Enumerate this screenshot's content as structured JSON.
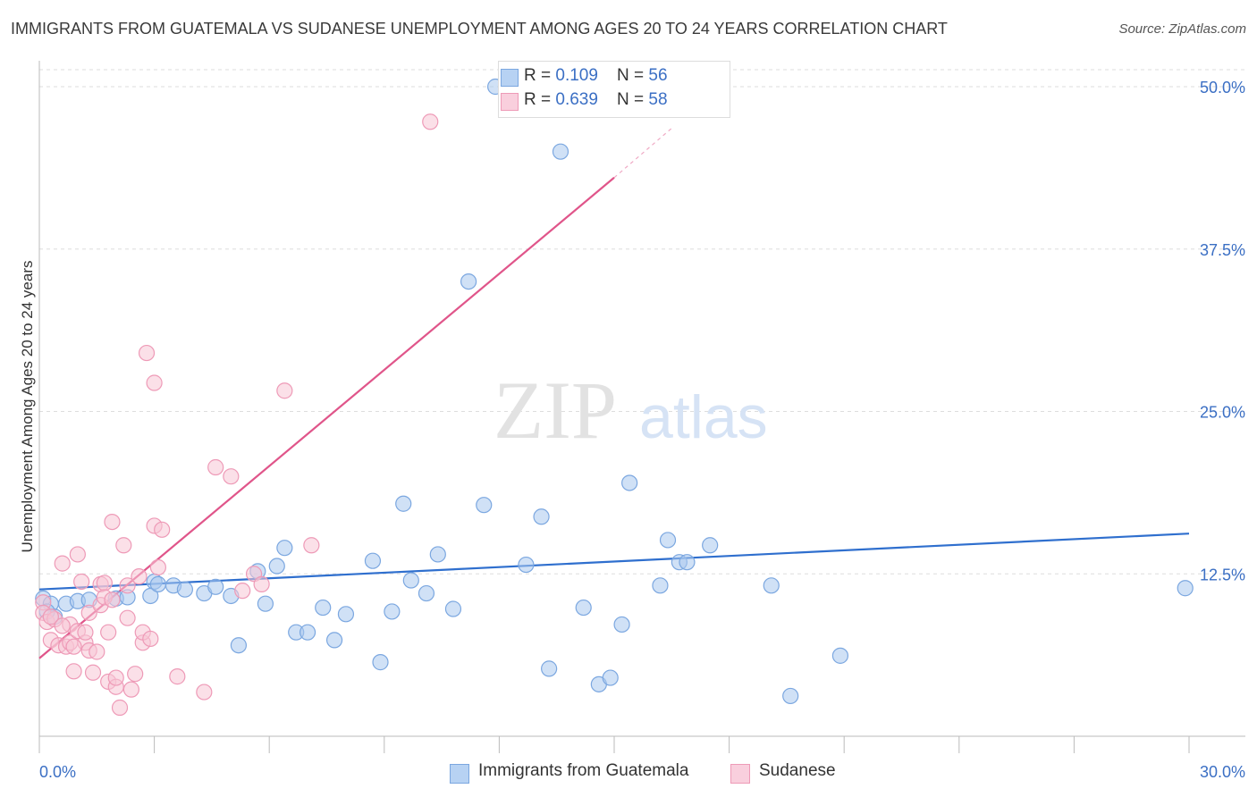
{
  "title": "IMMIGRANTS FROM GUATEMALA VS SUDANESE UNEMPLOYMENT AMONG AGES 20 TO 24 YEARS CORRELATION CHART",
  "source": "Source: ZipAtlas.com",
  "watermark": {
    "zip": "ZIP",
    "atlas": "atlas"
  },
  "legend": {
    "series1": {
      "r_label": "R = ",
      "r_value": "0.109",
      "n_label": "N = ",
      "n_value": "56"
    },
    "series2": {
      "r_label": "R = ",
      "r_value": "0.639",
      "n_label": "N = ",
      "n_value": "58"
    }
  },
  "chart_data": {
    "type": "scatter",
    "xlabel": "",
    "ylabel": "Unemployment Among Ages 20 to 24 years",
    "xlim": [
      0,
      30
    ],
    "ylim": [
      0,
      50
    ],
    "x_tick_labels": [
      "0.0%",
      "30.0%"
    ],
    "y_tick_values": [
      12.5,
      25.0,
      37.5,
      50.0
    ],
    "y_tick_labels": [
      "12.5%",
      "25.0%",
      "37.5%",
      "50.0%"
    ],
    "grid": true,
    "legend_position": "top-center",
    "series": [
      {
        "name": "Immigrants from Guatemala",
        "color": "#a9c8ef",
        "stroke": "#7ba7e0",
        "trend_color": "#2f6fce",
        "trend": [
          [
            0,
            11.3
          ],
          [
            30,
            15.6
          ]
        ],
        "points": [
          [
            0.1,
            10.6
          ],
          [
            0.3,
            10.2
          ],
          [
            0.4,
            9.2
          ],
          [
            0.7,
            10.2
          ],
          [
            1.0,
            10.4
          ],
          [
            1.3,
            10.5
          ],
          [
            2.0,
            10.6
          ],
          [
            2.3,
            10.7
          ],
          [
            2.9,
            10.8
          ],
          [
            3.0,
            11.9
          ],
          [
            3.1,
            11.7
          ],
          [
            3.5,
            11.6
          ],
          [
            3.8,
            11.3
          ],
          [
            4.3,
            11.0
          ],
          [
            4.6,
            11.5
          ],
          [
            5.0,
            10.8
          ],
          [
            5.2,
            7.0
          ],
          [
            5.7,
            12.7
          ],
          [
            5.9,
            10.2
          ],
          [
            6.2,
            13.1
          ],
          [
            6.4,
            14.5
          ],
          [
            6.7,
            8.0
          ],
          [
            7.0,
            8.0
          ],
          [
            7.4,
            9.9
          ],
          [
            7.7,
            7.4
          ],
          [
            8.0,
            9.4
          ],
          [
            8.7,
            13.5
          ],
          [
            8.9,
            5.7
          ],
          [
            9.2,
            9.6
          ],
          [
            9.5,
            17.9
          ],
          [
            9.7,
            12.0
          ],
          [
            10.1,
            11.0
          ],
          [
            10.4,
            14.0
          ],
          [
            10.8,
            9.8
          ],
          [
            11.2,
            35.0
          ],
          [
            11.6,
            17.8
          ],
          [
            12.7,
            13.2
          ],
          [
            13.1,
            16.9
          ],
          [
            13.3,
            5.2
          ],
          [
            13.6,
            45.0
          ],
          [
            14.2,
            9.9
          ],
          [
            14.6,
            4.0
          ],
          [
            14.9,
            4.5
          ],
          [
            15.2,
            8.6
          ],
          [
            15.4,
            19.5
          ],
          [
            16.2,
            11.6
          ],
          [
            16.4,
            15.1
          ],
          [
            16.7,
            13.4
          ],
          [
            16.9,
            13.4
          ],
          [
            17.5,
            14.7
          ],
          [
            19.1,
            11.6
          ],
          [
            19.6,
            3.1
          ],
          [
            20.9,
            6.2
          ],
          [
            11.9,
            50.0
          ],
          [
            29.9,
            11.4
          ],
          [
            0.2,
            9.6
          ]
        ]
      },
      {
        "name": "Sudanese",
        "color": "#f7c6d6",
        "stroke": "#ee9ab7",
        "trend_color": "#e0558a",
        "trend": [
          [
            0,
            6.0
          ],
          [
            15.0,
            43.0
          ]
        ],
        "trend_dashed": [
          [
            15.0,
            43.0
          ],
          [
            16.5,
            46.8
          ]
        ],
        "points": [
          [
            0.1,
            10.3
          ],
          [
            0.1,
            9.5
          ],
          [
            0.2,
            8.8
          ],
          [
            0.3,
            7.4
          ],
          [
            0.4,
            9.0
          ],
          [
            0.5,
            7.0
          ],
          [
            0.6,
            13.3
          ],
          [
            0.7,
            6.9
          ],
          [
            0.8,
            7.2
          ],
          [
            0.8,
            8.6
          ],
          [
            0.9,
            5.0
          ],
          [
            1.0,
            8.1
          ],
          [
            1.0,
            14.0
          ],
          [
            1.1,
            11.9
          ],
          [
            1.2,
            7.2
          ],
          [
            1.2,
            8.0
          ],
          [
            1.3,
            9.5
          ],
          [
            1.3,
            6.6
          ],
          [
            1.4,
            4.9
          ],
          [
            1.5,
            6.5
          ],
          [
            1.6,
            11.7
          ],
          [
            1.6,
            10.1
          ],
          [
            1.7,
            11.8
          ],
          [
            1.7,
            10.7
          ],
          [
            1.8,
            8.0
          ],
          [
            1.8,
            4.2
          ],
          [
            1.9,
            10.5
          ],
          [
            1.9,
            16.5
          ],
          [
            2.0,
            3.8
          ],
          [
            2.0,
            4.5
          ],
          [
            2.1,
            2.2
          ],
          [
            2.2,
            14.7
          ],
          [
            2.3,
            9.1
          ],
          [
            2.3,
            11.6
          ],
          [
            2.4,
            3.6
          ],
          [
            2.5,
            4.8
          ],
          [
            2.6,
            12.3
          ],
          [
            2.7,
            7.2
          ],
          [
            2.7,
            8.0
          ],
          [
            2.8,
            29.5
          ],
          [
            2.9,
            7.5
          ],
          [
            3.0,
            16.2
          ],
          [
            3.0,
            27.2
          ],
          [
            3.1,
            13.0
          ],
          [
            3.2,
            15.9
          ],
          [
            3.6,
            4.6
          ],
          [
            4.3,
            3.4
          ],
          [
            4.6,
            20.7
          ],
          [
            5.0,
            20.0
          ],
          [
            5.3,
            11.2
          ],
          [
            5.6,
            12.5
          ],
          [
            5.8,
            11.7
          ],
          [
            6.4,
            26.6
          ],
          [
            7.1,
            14.7
          ],
          [
            10.2,
            47.3
          ],
          [
            0.9,
            6.9
          ],
          [
            0.3,
            9.2
          ],
          [
            0.6,
            8.5
          ]
        ]
      }
    ]
  }
}
